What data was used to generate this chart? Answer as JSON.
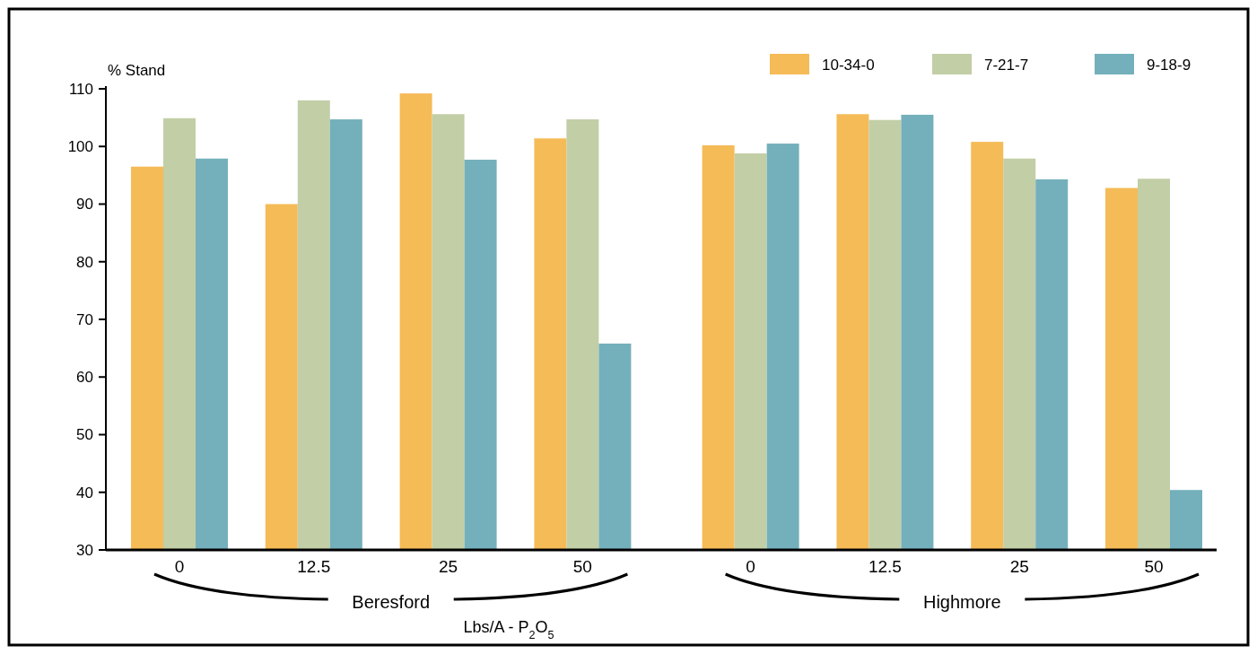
{
  "chart_data": {
    "type": "bar",
    "ylabel": "% Stand",
    "xlabel": "Lbs/A - P$_{2}$O$_{5}$",
    "categories": [
      "0",
      "12.5",
      "25",
      "50",
      "0",
      "12.5",
      "25",
      "50"
    ],
    "annotations": [
      "Beresford",
      "Highmore"
    ],
    "series": [
      {
        "name": "10-34-0",
        "color": "#f5bb57",
        "values": [
          96.5,
          90,
          109.2,
          101.4,
          100.2,
          105.6,
          100.8,
          92.8
        ]
      },
      {
        "name": "7-21-7",
        "color": "#c2cea6",
        "values": [
          104.9,
          108,
          105.6,
          104.7,
          98.8,
          104.6,
          97.9,
          94.4
        ]
      },
      {
        "name": "9-18-9",
        "color": "#74b0bb",
        "values": [
          97.9,
          104.7,
          97.7,
          65.8,
          100.5,
          105.5,
          94.3,
          40.4
        ]
      }
    ],
    "ylim": [
      30,
      110
    ],
    "yticks": [
      30,
      40,
      50,
      60,
      70,
      80,
      90,
      100,
      110
    ],
    "grid": false,
    "legend": "top right"
  }
}
